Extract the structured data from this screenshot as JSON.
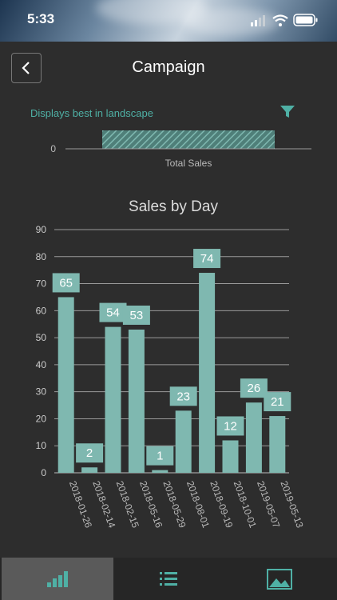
{
  "status": {
    "time": "5:33"
  },
  "header": {
    "title": "Campaign"
  },
  "hint": "Displays best in landscape",
  "summary": {
    "zero_label": "0",
    "label": "Total Sales"
  },
  "chart_data": {
    "type": "bar",
    "title": "Sales by Day",
    "categories": [
      "2018-01-26",
      "2018-02-14",
      "2018-02-15",
      "2018-05-16",
      "2018-05-29",
      "2018-08-01",
      "2018-09-19",
      "2018-10-01",
      "2019-05-07",
      "2019-05-13"
    ],
    "values": [
      65,
      2,
      54,
      53,
      1,
      23,
      74,
      12,
      26,
      21
    ],
    "ylim": [
      0,
      90
    ],
    "yticks": [
      0,
      10,
      20,
      30,
      40,
      50,
      60,
      70,
      80,
      90
    ],
    "grid": true,
    "bar_color": "#7fb8b0"
  },
  "colors": {
    "accent": "#4fb0a5",
    "background": "#2d2d2d"
  },
  "tabs": [
    {
      "icon": "bar-chart-icon",
      "active": true
    },
    {
      "icon": "list-icon",
      "active": false
    },
    {
      "icon": "image-icon",
      "active": false
    }
  ]
}
